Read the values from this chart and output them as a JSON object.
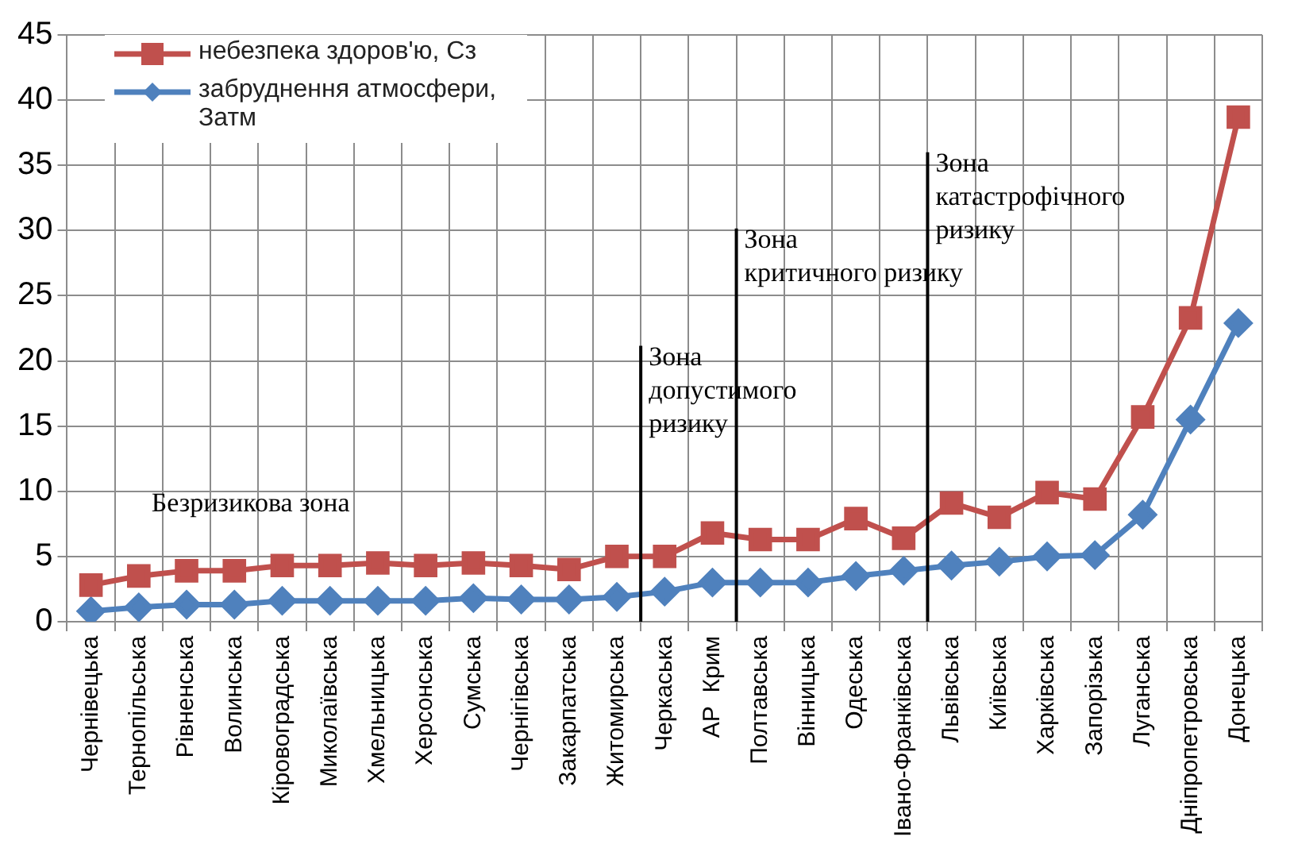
{
  "chart_data": {
    "type": "line",
    "categories": [
      "Чернівецька",
      "Тернопільська",
      "Рівненська",
      "Волинська",
      "Кіровоградська",
      "Миколаївська",
      "Хмельницька",
      "Херсонська",
      "Сумська",
      "Чернігівська",
      "Закарпатська",
      "Житомирська",
      "Черкаська",
      "АР  Крим",
      "Полтавська",
      "Вінницька",
      "Одеська",
      "Івано-Франківська",
      "Львівська",
      "Київська",
      "Харківська",
      "Запорізька",
      "Луганська",
      "Дніпропетровська",
      "Донецька"
    ],
    "series": [
      {
        "name": "небезпека здоров'ю, Сз",
        "color": "#c0504d",
        "marker": "square",
        "values": [
          2.8,
          3.5,
          3.9,
          3.9,
          4.3,
          4.3,
          4.5,
          4.3,
          4.5,
          4.3,
          4.0,
          5.0,
          5.0,
          6.8,
          6.3,
          6.3,
          7.9,
          6.4,
          9.1,
          8.0,
          9.9,
          9.4,
          15.7,
          23.3,
          38.7
        ]
      },
      {
        "name": "забруднення атмосфери, Затм",
        "color": "#4f81bd",
        "marker": "diamond",
        "values": [
          0.8,
          1.1,
          1.3,
          1.3,
          1.6,
          1.6,
          1.6,
          1.6,
          1.8,
          1.7,
          1.7,
          1.9,
          2.3,
          3.0,
          3.0,
          3.0,
          3.5,
          3.9,
          4.3,
          4.6,
          5.0,
          5.1,
          8.2,
          15.5,
          22.9
        ]
      }
    ],
    "ylim": [
      0,
      45
    ],
    "yticks": [
      0,
      5,
      10,
      15,
      20,
      25,
      30,
      35,
      40,
      45
    ],
    "grid": true,
    "legend": "top left",
    "line_style": "solid",
    "annotations": [
      "Безризикова зона",
      "Зона\nдопустимого\nризику",
      "Зона\nкритичного ризику",
      "Зона\nкатастрофічного\nризику"
    ]
  }
}
